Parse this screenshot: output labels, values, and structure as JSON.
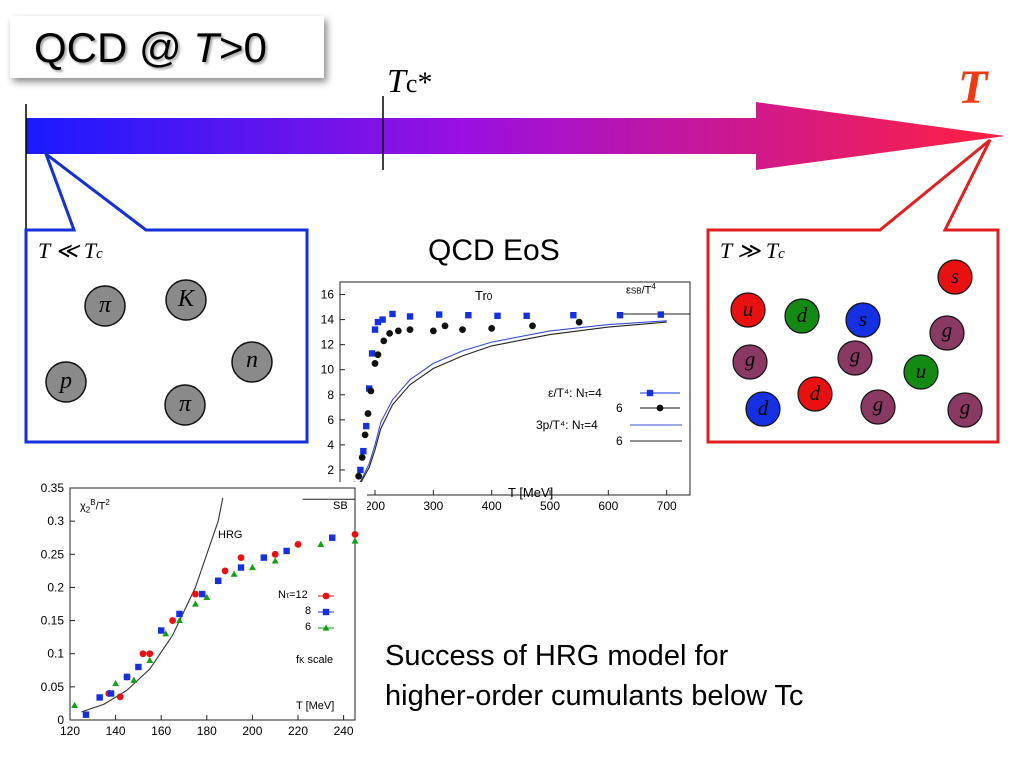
{
  "title": {
    "prefix": "QCD @ ",
    "var": "T",
    "suffix": ">0"
  },
  "axis": {
    "tc_label": "T",
    "tc_sub": "c",
    "tc_star": "*",
    "t_label": "T",
    "gradient_start": "#1a1aff",
    "gradient_end": "#ff2040"
  },
  "low_box": {
    "label": "T ≪ T",
    "label_sub": "c",
    "border": "#1530d8",
    "particles": [
      "π",
      "K",
      "n",
      "p",
      "π"
    ],
    "ball_color": "#8a8a8a"
  },
  "high_box": {
    "label": "T ≫ T",
    "label_sub": "c",
    "border": "#e02020",
    "particles": [
      "s",
      "u",
      "d",
      "s",
      "g",
      "g",
      "g",
      "u",
      "d",
      "d",
      "g",
      "g"
    ],
    "colors": {
      "red": "#e81010",
      "green": "#138a13",
      "blue": "#1530e0",
      "purple": "#8a3a62"
    }
  },
  "eos": {
    "heading": "QCD EoS",
    "top_left_label": "Tr",
    "top_left_sub": "0",
    "top_right_label": "ε",
    "top_right_sub": "SB",
    "top_right_tail": "/T",
    "top_right_sup": "4",
    "xlabel": "T [MeV]",
    "legend": [
      {
        "label": "ε/T⁴: N",
        "sub": "τ",
        "tail": "=4"
      },
      {
        "label": "6"
      },
      {
        "label": "3p/T⁴: N",
        "sub": "τ",
        "tail": "=4"
      },
      {
        "label": "6"
      }
    ]
  },
  "hrg": {
    "ylabel": "χ",
    "ylabel_sub": "2",
    "ylabel_sup": "B",
    "ylabel_tail": "/T",
    "ylabel_sup2": "2",
    "sb_label": "SB",
    "hrg_label": "HRG",
    "legend": [
      {
        "label": "N",
        "sub": "τ",
        "tail": "=12"
      },
      {
        "label": "8"
      },
      {
        "label": "6"
      }
    ],
    "fk_label": "f",
    "fk_sub": "K",
    "fk_tail": " scale",
    "xlabel": "T [MeV]"
  },
  "caption": {
    "line1": "Success of HRG model for",
    "line2": "higher-order cumulants below Tc"
  },
  "chart_data": [
    {
      "type": "scatter",
      "title": "",
      "xlabel": "T [MeV]",
      "ylabel": "",
      "xlim": [
        140,
        740
      ],
      "ylim": [
        0,
        17
      ],
      "x_ticks": [
        200,
        300,
        400,
        500,
        600,
        700
      ],
      "y_ticks": [
        2,
        4,
        6,
        8,
        10,
        12,
        14,
        16
      ],
      "reference_line": 14.45,
      "series": [
        {
          "name": "ε/T⁴: Nτ=4",
          "marker": "square",
          "color": "#1530e0",
          "points": [
            [
              175,
              2
            ],
            [
              180,
              3.5
            ],
            [
              185,
              5.5
            ],
            [
              190,
              8.5
            ],
            [
              195,
              11.3
            ],
            [
              200,
              13.2
            ],
            [
              205,
              13.8
            ],
            [
              213,
              14.0
            ],
            [
              230,
              14.45
            ],
            [
              260,
              14.25
            ],
            [
              310,
              14.4
            ],
            [
              360,
              14.35
            ],
            [
              410,
              14.3
            ],
            [
              460,
              14.3
            ],
            [
              540,
              14.35
            ],
            [
              620,
              14.35
            ],
            [
              690,
              14.4
            ]
          ]
        },
        {
          "name": "ε/T⁴: Nτ=6",
          "marker": "circle",
          "color": "#111111",
          "points": [
            [
              165,
              0.8
            ],
            [
              172,
              1.5
            ],
            [
              178,
              3
            ],
            [
              183,
              4.8
            ],
            [
              188,
              6.5
            ],
            [
              193,
              8.3
            ],
            [
              200,
              10.5
            ],
            [
              205,
              11.2
            ],
            [
              215,
              12.3
            ],
            [
              225,
              12.9
            ],
            [
              240,
              13.1
            ],
            [
              260,
              13.2
            ],
            [
              300,
              13.1
            ],
            [
              320,
              13.5
            ],
            [
              350,
              13.2
            ],
            [
              400,
              13.3
            ],
            [
              470,
              13.5
            ],
            [
              550,
              13.8
            ]
          ]
        },
        {
          "name": "3p/T⁴: Nτ=4",
          "marker": "line",
          "color": "#3b4bd0",
          "points": [
            [
              170,
              0.6
            ],
            [
              190,
              2.5
            ],
            [
              200,
              4
            ],
            [
              210,
              5.8
            ],
            [
              230,
              7.6
            ],
            [
              260,
              9.2
            ],
            [
              300,
              10.5
            ],
            [
              350,
              11.5
            ],
            [
              400,
              12.2
            ],
            [
              500,
              13.1
            ],
            [
              600,
              13.6
            ],
            [
              700,
              13.9
            ]
          ]
        },
        {
          "name": "3p/T⁴: Nτ=6",
          "marker": "line",
          "color": "#222222",
          "points": [
            [
              170,
              0.5
            ],
            [
              190,
              2.2
            ],
            [
              200,
              3.6
            ],
            [
              210,
              5.3
            ],
            [
              230,
              7.2
            ],
            [
              260,
              8.8
            ],
            [
              300,
              10.1
            ],
            [
              350,
              11.1
            ],
            [
              400,
              11.9
            ],
            [
              500,
              12.8
            ],
            [
              600,
              13.4
            ],
            [
              700,
              13.8
            ]
          ]
        }
      ]
    },
    {
      "type": "scatter",
      "title": "",
      "xlabel": "T [MeV]",
      "ylabel": "χ2B/T2",
      "xlim": [
        120,
        245
      ],
      "ylim": [
        0,
        0.35
      ],
      "x_ticks": [
        120,
        140,
        160,
        180,
        200,
        220,
        240
      ],
      "y_ticks": [
        0,
        0.05,
        0.1,
        0.15,
        0.2,
        0.25,
        0.3,
        0.35
      ],
      "sb_value": 0.333,
      "series": [
        {
          "name": "HRG",
          "marker": "line",
          "color": "#333333",
          "points": [
            [
              125,
              0.012
            ],
            [
              135,
              0.024
            ],
            [
              145,
              0.045
            ],
            [
              155,
              0.077
            ],
            [
              165,
              0.128
            ],
            [
              175,
              0.2
            ],
            [
              185,
              0.3
            ],
            [
              187,
              0.335
            ]
          ]
        },
        {
          "name": "Nτ=12",
          "marker": "circle",
          "color": "#e81010",
          "points": [
            [
              137,
              0.04
            ],
            [
              142,
              0.035
            ],
            [
              145,
              0.065
            ],
            [
              152,
              0.1
            ],
            [
              155,
              0.1
            ],
            [
              165,
              0.15
            ],
            [
              175,
              0.19
            ],
            [
              185,
              0.21
            ],
            [
              188,
              0.225
            ],
            [
              195,
              0.245
            ],
            [
              210,
              0.25
            ],
            [
              220,
              0.265
            ],
            [
              245,
              0.28
            ]
          ]
        },
        {
          "name": "8",
          "marker": "square",
          "color": "#1530e0",
          "points": [
            [
              127,
              0.008
            ],
            [
              133,
              0.034
            ],
            [
              138,
              0.04
            ],
            [
              145,
              0.065
            ],
            [
              150,
              0.08
            ],
            [
              160,
              0.135
            ],
            [
              168,
              0.16
            ],
            [
              178,
              0.19
            ],
            [
              185,
              0.21
            ],
            [
              195,
              0.23
            ],
            [
              205,
              0.245
            ],
            [
              215,
              0.255
            ],
            [
              235,
              0.275
            ]
          ]
        },
        {
          "name": "6",
          "marker": "triangle",
          "color": "#10a010",
          "points": [
            [
              122,
              0.022
            ],
            [
              140,
              0.055
            ],
            [
              148,
              0.06
            ],
            [
              155,
              0.09
            ],
            [
              162,
              0.13
            ],
            [
              168,
              0.15
            ],
            [
              175,
              0.175
            ],
            [
              180,
              0.185
            ],
            [
              192,
              0.22
            ],
            [
              200,
              0.23
            ],
            [
              210,
              0.24
            ],
            [
              230,
              0.265
            ],
            [
              245,
              0.27
            ]
          ]
        }
      ]
    }
  ]
}
